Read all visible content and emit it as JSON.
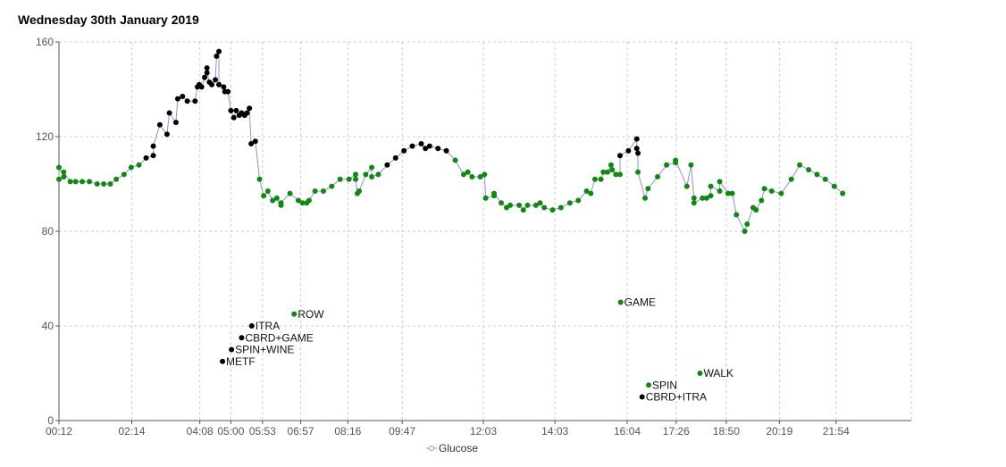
{
  "chart_data": {
    "type": "scatter",
    "title": "Wednesday 30th January 2019",
    "ylim": [
      0,
      160
    ],
    "y_ticks": [
      0,
      40,
      80,
      120,
      160
    ],
    "x_domain_minutes": [
      12,
      1440
    ],
    "x_ticks": [
      {
        "label": "00:12",
        "minutes": 12
      },
      {
        "label": "02:14",
        "minutes": 134
      },
      {
        "label": "04:08",
        "minutes": 248
      },
      {
        "label": "05:00",
        "minutes": 300
      },
      {
        "label": "05:53",
        "minutes": 353
      },
      {
        "label": "06:57",
        "minutes": 417
      },
      {
        "label": "08:16",
        "minutes": 496
      },
      {
        "label": "09:47",
        "minutes": 587
      },
      {
        "label": "12:03",
        "minutes": 723
      },
      {
        "label": "14:03",
        "minutes": 843
      },
      {
        "label": "16:04",
        "minutes": 964
      },
      {
        "label": "17:26",
        "minutes": 1046
      },
      {
        "label": "18:50",
        "minutes": 1130
      },
      {
        "label": "20:19",
        "minutes": 1219
      },
      {
        "label": "21:54",
        "minutes": 1314
      }
    ],
    "grid": true,
    "legend": {
      "position": "bottom-center",
      "label": "Glucose"
    },
    "colors": {
      "in_range": "#118811",
      "high": "#000000",
      "line": "#8f8fd6",
      "grid": "#cccccc",
      "axis": "#555555"
    },
    "series": [
      {
        "name": "Glucose",
        "points": [
          {
            "t": 12,
            "v": 102,
            "c": "g"
          },
          {
            "t": 12,
            "v": 107,
            "c": "g"
          },
          {
            "t": 20,
            "v": 103,
            "c": "g"
          },
          {
            "t": 20,
            "v": 105,
            "c": "g"
          },
          {
            "t": 31,
            "v": 101,
            "c": "g"
          },
          {
            "t": 40,
            "v": 101,
            "c": "g"
          },
          {
            "t": 51,
            "v": 101,
            "c": "g"
          },
          {
            "t": 63,
            "v": 101,
            "c": "g"
          },
          {
            "t": 76,
            "v": 100,
            "c": "g"
          },
          {
            "t": 87,
            "v": 100,
            "c": "g"
          },
          {
            "t": 98,
            "v": 100,
            "c": "g"
          },
          {
            "t": 108,
            "v": 102,
            "c": "g"
          },
          {
            "t": 121,
            "v": 104,
            "c": "g"
          },
          {
            "t": 133,
            "v": 107,
            "c": "g"
          },
          {
            "t": 146,
            "v": 108,
            "c": "g"
          },
          {
            "t": 158,
            "v": 111,
            "c": "k"
          },
          {
            "t": 170,
            "v": 112,
            "c": "k"
          },
          {
            "t": 170,
            "v": 116,
            "c": "k"
          },
          {
            "t": 181,
            "v": 125,
            "c": "k"
          },
          {
            "t": 193,
            "v": 121,
            "c": "k"
          },
          {
            "t": 197,
            "v": 130,
            "c": "k"
          },
          {
            "t": 208,
            "v": 126,
            "c": "k"
          },
          {
            "t": 211,
            "v": 136,
            "c": "k"
          },
          {
            "t": 219,
            "v": 137,
            "c": "k"
          },
          {
            "t": 227,
            "v": 135,
            "c": "k"
          },
          {
            "t": 240,
            "v": 135,
            "c": "k"
          },
          {
            "t": 244,
            "v": 141,
            "c": "k"
          },
          {
            "t": 247,
            "v": 142,
            "c": "k"
          },
          {
            "t": 251,
            "v": 141,
            "c": "k"
          },
          {
            "t": 256,
            "v": 145,
            "c": "k"
          },
          {
            "t": 260,
            "v": 149,
            "c": "k"
          },
          {
            "t": 260,
            "v": 147,
            "c": "k"
          },
          {
            "t": 264,
            "v": 143,
            "c": "k"
          },
          {
            "t": 268,
            "v": 142,
            "c": "k"
          },
          {
            "t": 274,
            "v": 144,
            "c": "k"
          },
          {
            "t": 276,
            "v": 154,
            "c": "k"
          },
          {
            "t": 280,
            "v": 156,
            "c": "k"
          },
          {
            "t": 280,
            "v": 142,
            "c": "k"
          },
          {
            "t": 288,
            "v": 141,
            "c": "k"
          },
          {
            "t": 290,
            "v": 139,
            "c": "k"
          },
          {
            "t": 295,
            "v": 139,
            "c": "k"
          },
          {
            "t": 300,
            "v": 131,
            "c": "k"
          },
          {
            "t": 305,
            "v": 128,
            "c": "k"
          },
          {
            "t": 309,
            "v": 131,
            "c": "k"
          },
          {
            "t": 314,
            "v": 129,
            "c": "k"
          },
          {
            "t": 318,
            "v": 130,
            "c": "k"
          },
          {
            "t": 323,
            "v": 129,
            "c": "k"
          },
          {
            "t": 327,
            "v": 130,
            "c": "k"
          },
          {
            "t": 331,
            "v": 132,
            "c": "k"
          },
          {
            "t": 334,
            "v": 117,
            "c": "k"
          },
          {
            "t": 341,
            "v": 118,
            "c": "k"
          },
          {
            "t": 348,
            "v": 102,
            "c": "g"
          },
          {
            "t": 355,
            "v": 95,
            "c": "g"
          },
          {
            "t": 362,
            "v": 97,
            "c": "g"
          },
          {
            "t": 370,
            "v": 93,
            "c": "g"
          },
          {
            "t": 377,
            "v": 94,
            "c": "g"
          },
          {
            "t": 384,
            "v": 91,
            "c": "g"
          },
          {
            "t": 384,
            "v": 92,
            "c": "g"
          },
          {
            "t": 399,
            "v": 96,
            "c": "g"
          },
          {
            "t": 413,
            "v": 93,
            "c": "g"
          },
          {
            "t": 420,
            "v": 92,
            "c": "g"
          },
          {
            "t": 427,
            "v": 92,
            "c": "g"
          },
          {
            "t": 431,
            "v": 93,
            "c": "g"
          },
          {
            "t": 441,
            "v": 97,
            "c": "g"
          },
          {
            "t": 455,
            "v": 97,
            "c": "g"
          },
          {
            "t": 469,
            "v": 99,
            "c": "g"
          },
          {
            "t": 483,
            "v": 102,
            "c": "g"
          },
          {
            "t": 498,
            "v": 102,
            "c": "g"
          },
          {
            "t": 509,
            "v": 104,
            "c": "g"
          },
          {
            "t": 509,
            "v": 102,
            "c": "g"
          },
          {
            "t": 512,
            "v": 96,
            "c": "g"
          },
          {
            "t": 515,
            "v": 97,
            "c": "g"
          },
          {
            "t": 526,
            "v": 104,
            "c": "g"
          },
          {
            "t": 536,
            "v": 107,
            "c": "g"
          },
          {
            "t": 536,
            "v": 103,
            "c": "g"
          },
          {
            "t": 547,
            "v": 104,
            "c": "g"
          },
          {
            "t": 562,
            "v": 108,
            "c": "k"
          },
          {
            "t": 576,
            "v": 111,
            "c": "k"
          },
          {
            "t": 590,
            "v": 114,
            "c": "k"
          },
          {
            "t": 604,
            "v": 116,
            "c": "k"
          },
          {
            "t": 619,
            "v": 117,
            "c": "k"
          },
          {
            "t": 626,
            "v": 115,
            "c": "k"
          },
          {
            "t": 633,
            "v": 116,
            "c": "k"
          },
          {
            "t": 647,
            "v": 115,
            "c": "k"
          },
          {
            "t": 661,
            "v": 114,
            "c": "k"
          },
          {
            "t": 676,
            "v": 110,
            "c": "g"
          },
          {
            "t": 690,
            "v": 104,
            "c": "g"
          },
          {
            "t": 697,
            "v": 105,
            "c": "g"
          },
          {
            "t": 704,
            "v": 103,
            "c": "g"
          },
          {
            "t": 718,
            "v": 103,
            "c": "g"
          },
          {
            "t": 725,
            "v": 104,
            "c": "g"
          },
          {
            "t": 727,
            "v": 94,
            "c": "g"
          },
          {
            "t": 741,
            "v": 95,
            "c": "g"
          },
          {
            "t": 741,
            "v": 96,
            "c": "g"
          },
          {
            "t": 753,
            "v": 92,
            "c": "g"
          },
          {
            "t": 762,
            "v": 90,
            "c": "g"
          },
          {
            "t": 768,
            "v": 91,
            "c": "g"
          },
          {
            "t": 783,
            "v": 91,
            "c": "g"
          },
          {
            "t": 790,
            "v": 89,
            "c": "g"
          },
          {
            "t": 797,
            "v": 91,
            "c": "g"
          },
          {
            "t": 811,
            "v": 91,
            "c": "g"
          },
          {
            "t": 818,
            "v": 92,
            "c": "g"
          },
          {
            "t": 825,
            "v": 90,
            "c": "g"
          },
          {
            "t": 839,
            "v": 89,
            "c": "g"
          },
          {
            "t": 853,
            "v": 90,
            "c": "g"
          },
          {
            "t": 868,
            "v": 92,
            "c": "g"
          },
          {
            "t": 882,
            "v": 93,
            "c": "g"
          },
          {
            "t": 896,
            "v": 97,
            "c": "g"
          },
          {
            "t": 903,
            "v": 96,
            "c": "g"
          },
          {
            "t": 910,
            "v": 102,
            "c": "g"
          },
          {
            "t": 920,
            "v": 102,
            "c": "g"
          },
          {
            "t": 924,
            "v": 105,
            "c": "g"
          },
          {
            "t": 931,
            "v": 105,
            "c": "g"
          },
          {
            "t": 937,
            "v": 108,
            "c": "g"
          },
          {
            "t": 939,
            "v": 106,
            "c": "g"
          },
          {
            "t": 945,
            "v": 104,
            "c": "g"
          },
          {
            "t": 952,
            "v": 104,
            "c": "g"
          },
          {
            "t": 952,
            "v": 112,
            "c": "k"
          },
          {
            "t": 966,
            "v": 114,
            "c": "k"
          },
          {
            "t": 980,
            "v": 119,
            "c": "k"
          },
          {
            "t": 980,
            "v": 115,
            "c": "k"
          },
          {
            "t": 982,
            "v": 113,
            "c": "k"
          },
          {
            "t": 982,
            "v": 105,
            "c": "g"
          },
          {
            "t": 994,
            "v": 94,
            "c": "g"
          },
          {
            "t": 999,
            "v": 98,
            "c": "g"
          },
          {
            "t": 1015,
            "v": 103,
            "c": "g"
          },
          {
            "t": 1030,
            "v": 108,
            "c": "g"
          },
          {
            "t": 1045,
            "v": 109,
            "c": "g"
          },
          {
            "t": 1045,
            "v": 110,
            "c": "g"
          },
          {
            "t": 1064,
            "v": 99,
            "c": "g"
          },
          {
            "t": 1071,
            "v": 108,
            "c": "g"
          },
          {
            "t": 1076,
            "v": 94,
            "c": "g"
          },
          {
            "t": 1076,
            "v": 92,
            "c": "g"
          },
          {
            "t": 1090,
            "v": 94,
            "c": "g"
          },
          {
            "t": 1097,
            "v": 94,
            "c": "g"
          },
          {
            "t": 1104,
            "v": 95,
            "c": "g"
          },
          {
            "t": 1104,
            "v": 99,
            "c": "g"
          },
          {
            "t": 1119,
            "v": 97,
            "c": "g"
          },
          {
            "t": 1119,
            "v": 101,
            "c": "g"
          },
          {
            "t": 1133,
            "v": 96,
            "c": "g"
          },
          {
            "t": 1140,
            "v": 96,
            "c": "g"
          },
          {
            "t": 1147,
            "v": 87,
            "c": "g"
          },
          {
            "t": 1161,
            "v": 80,
            "c": "g"
          },
          {
            "t": 1165,
            "v": 83,
            "c": "g"
          },
          {
            "t": 1175,
            "v": 90,
            "c": "g"
          },
          {
            "t": 1180,
            "v": 89,
            "c": "g"
          },
          {
            "t": 1189,
            "v": 93,
            "c": "g"
          },
          {
            "t": 1194,
            "v": 98,
            "c": "g"
          },
          {
            "t": 1206,
            "v": 97,
            "c": "g"
          },
          {
            "t": 1222,
            "v": 96,
            "c": "g"
          },
          {
            "t": 1239,
            "v": 102,
            "c": "g"
          },
          {
            "t": 1253,
            "v": 108,
            "c": "g"
          },
          {
            "t": 1268,
            "v": 106,
            "c": "g"
          },
          {
            "t": 1282,
            "v": 104,
            "c": "g"
          },
          {
            "t": 1296,
            "v": 102,
            "c": "g"
          },
          {
            "t": 1311,
            "v": 99,
            "c": "g"
          },
          {
            "t": 1325,
            "v": 96,
            "c": "g"
          }
        ]
      }
    ],
    "annotations": [
      {
        "t": 286,
        "v": 25,
        "label": "METF",
        "c": "k"
      },
      {
        "t": 301,
        "v": 30,
        "label": "SPIN+WINE",
        "c": "k"
      },
      {
        "t": 318,
        "v": 35,
        "label": "CBRD+GAME",
        "c": "k"
      },
      {
        "t": 335,
        "v": 40,
        "label": "ITRA",
        "c": "k"
      },
      {
        "t": 406,
        "v": 45,
        "label": "ROW",
        "c": "g"
      },
      {
        "t": 953,
        "v": 50,
        "label": "GAME",
        "c": "g"
      },
      {
        "t": 1000,
        "v": 15,
        "label": "SPIN",
        "c": "g"
      },
      {
        "t": 989,
        "v": 10,
        "label": "CBRD+ITRA",
        "c": "k"
      },
      {
        "t": 1086,
        "v": 20,
        "label": "WALK",
        "c": "g"
      }
    ]
  }
}
